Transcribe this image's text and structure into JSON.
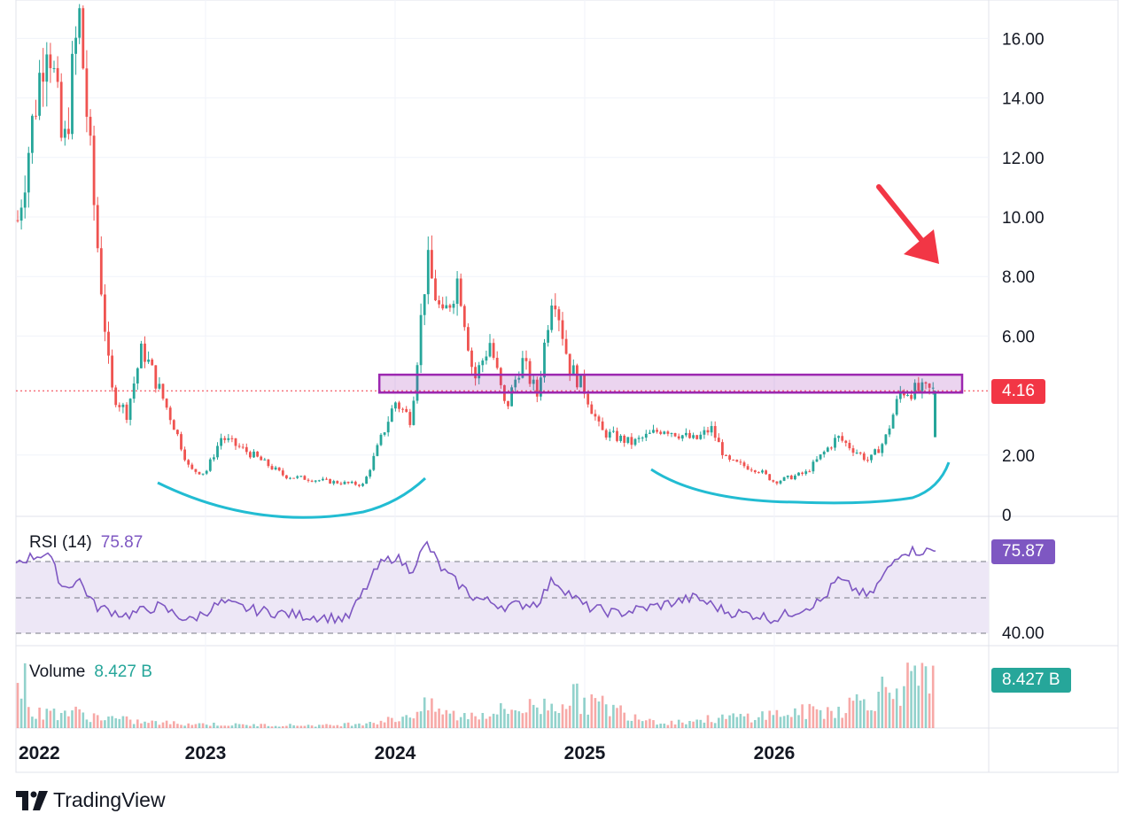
{
  "colors": {
    "up": "#26a69a",
    "down": "#ef5350",
    "rsi_line": "#7e57c2",
    "rsi_band": "#ede7f6",
    "grid": "#f0f3fa",
    "annotation_box": "#9c27b0",
    "curve": "#22bcd2",
    "arrow": "#f23645",
    "last_price_tag": "#f23645",
    "rsi_tag": "#7e57c2",
    "volume_tag": "#26a69a"
  },
  "price_axis": {
    "ticks": [
      "16.00",
      "14.00",
      "12.00",
      "10.00",
      "8.00",
      "6.00",
      "2.00",
      "0"
    ],
    "tick_values": [
      16,
      14,
      12,
      10,
      8,
      6,
      2,
      0
    ],
    "last_price_label": "4.16"
  },
  "rsi_axis": {
    "ticks": [
      "40.00"
    ],
    "tick_values": [
      40
    ]
  },
  "time_axis": {
    "labels": [
      "2022",
      "2023",
      "2024",
      "2025",
      "2026"
    ]
  },
  "rsi_pane": {
    "name": "RSI (14)",
    "value": "75.87"
  },
  "volume_pane": {
    "name": "Volume",
    "value": "8.427 B"
  },
  "branding": {
    "name": "TradingView",
    "logo_icon": "tradingview-logo-icon"
  },
  "chart_data": [
    {
      "type": "candlestick",
      "x_axis": "date",
      "y_range": [
        0,
        16.7
      ],
      "last_price": 4.16,
      "key_points": [
        {
          "date": "2022-01",
          "price": 9.5
        },
        {
          "date": "2022-03",
          "price": 16.5
        },
        {
          "date": "2022-04",
          "price": 12
        },
        {
          "date": "2022-05",
          "price": 16.8
        },
        {
          "date": "2022-06",
          "price": 10
        },
        {
          "date": "2022-07",
          "price": 4.2
        },
        {
          "date": "2022-08",
          "price": 3.4
        },
        {
          "date": "2022-09",
          "price": 5.6
        },
        {
          "date": "2022-10",
          "price": 4.3
        },
        {
          "date": "2022-11",
          "price": 3
        },
        {
          "date": "2022-12",
          "price": 1.5
        },
        {
          "date": "2023-01",
          "price": 1.4
        },
        {
          "date": "2023-02",
          "price": 2.6
        },
        {
          "date": "2023-04",
          "price": 2.0
        },
        {
          "date": "2023-06",
          "price": 1.3
        },
        {
          "date": "2023-09",
          "price": 1.1
        },
        {
          "date": "2023-11",
          "price": 1.0
        },
        {
          "date": "2023-12",
          "price": 2.4
        },
        {
          "date": "2024-01",
          "price": 3.8
        },
        {
          "date": "2024-02",
          "price": 3.2
        },
        {
          "date": "2024-03",
          "price": 8.5
        },
        {
          "date": "2024-04",
          "price": 6.5
        },
        {
          "date": "2024-05",
          "price": 8.0
        },
        {
          "date": "2024-06",
          "price": 4.5
        },
        {
          "date": "2024-07",
          "price": 5.8
        },
        {
          "date": "2024-08",
          "price": 3.5
        },
        {
          "date": "2024-09",
          "price": 5.2
        },
        {
          "date": "2024-10",
          "price": 4.0
        },
        {
          "date": "2024-11",
          "price": 7.8
        },
        {
          "date": "2024-12",
          "price": 5.0
        },
        {
          "date": "2025-01",
          "price": 4.2
        },
        {
          "date": "2025-02",
          "price": 2.8
        },
        {
          "date": "2025-04",
          "price": 2.4
        },
        {
          "date": "2025-06",
          "price": 2.9
        },
        {
          "date": "2025-08",
          "price": 2.5
        },
        {
          "date": "2025-09",
          "price": 2.9
        },
        {
          "date": "2025-10",
          "price": 1.8
        },
        {
          "date": "2025-12",
          "price": 1.5
        },
        {
          "date": "2026-01",
          "price": 1.1
        },
        {
          "date": "2026-03",
          "price": 1.4
        },
        {
          "date": "2026-05",
          "price": 2.6
        },
        {
          "date": "2026-07",
          "price": 1.8
        },
        {
          "date": "2026-08",
          "price": 2.5
        },
        {
          "date": "2026-09",
          "price": 4.16
        }
      ],
      "annotation_zone": {
        "price_from": 4.1,
        "price_to": 4.7,
        "date_from": "2023-12",
        "date_to": "2026-10"
      }
    },
    {
      "type": "line",
      "name": "RSI (14)",
      "x_axis": "date",
      "y_range": [
        30,
        80
      ],
      "band": [
        30,
        70
      ],
      "last_value": 75.87,
      "points": [
        {
          "date": "2022-01",
          "value": 70
        },
        {
          "date": "2022-03",
          "value": 75
        },
        {
          "date": "2022-04",
          "value": 55
        },
        {
          "date": "2022-05",
          "value": 60
        },
        {
          "date": "2022-06",
          "value": 45
        },
        {
          "date": "2022-08",
          "value": 40
        },
        {
          "date": "2022-10",
          "value": 45
        },
        {
          "date": "2022-12",
          "value": 37
        },
        {
          "date": "2023-02",
          "value": 47
        },
        {
          "date": "2023-04",
          "value": 43
        },
        {
          "date": "2023-07",
          "value": 40
        },
        {
          "date": "2023-10",
          "value": 38
        },
        {
          "date": "2023-12",
          "value": 68
        },
        {
          "date": "2024-01",
          "value": 73
        },
        {
          "date": "2024-02",
          "value": 65
        },
        {
          "date": "2024-03",
          "value": 80
        },
        {
          "date": "2024-04",
          "value": 65
        },
        {
          "date": "2024-06",
          "value": 50
        },
        {
          "date": "2024-08",
          "value": 45
        },
        {
          "date": "2024-10",
          "value": 47
        },
        {
          "date": "2024-11",
          "value": 60
        },
        {
          "date": "2025-01",
          "value": 45
        },
        {
          "date": "2025-03",
          "value": 41
        },
        {
          "date": "2025-06",
          "value": 46
        },
        {
          "date": "2025-08",
          "value": 50
        },
        {
          "date": "2025-10",
          "value": 42
        },
        {
          "date": "2025-12",
          "value": 40
        },
        {
          "date": "2026-01",
          "value": 38
        },
        {
          "date": "2026-04",
          "value": 48
        },
        {
          "date": "2026-05",
          "value": 60
        },
        {
          "date": "2026-07",
          "value": 50
        },
        {
          "date": "2026-09",
          "value": 75.87
        }
      ]
    },
    {
      "type": "bar",
      "name": "Volume",
      "x_axis": "date",
      "last_value": "8.427 B",
      "note_units": "billions",
      "points": [
        {
          "date": "2022-02",
          "value": 2.5
        },
        {
          "date": "2022-04",
          "value": 3.2
        },
        {
          "date": "2022-06",
          "value": 2.2
        },
        {
          "date": "2022-09",
          "value": 1.1
        },
        {
          "date": "2023-03",
          "value": 0.6
        },
        {
          "date": "2023-09",
          "value": 0.5
        },
        {
          "date": "2024-01",
          "value": 1.6
        },
        {
          "date": "2024-03",
          "value": 4.0
        },
        {
          "date": "2024-05",
          "value": 2.2
        },
        {
          "date": "2024-11",
          "value": 4.5
        },
        {
          "date": "2024-12",
          "value": 6.0
        },
        {
          "date": "2025-06",
          "value": 1.0
        },
        {
          "date": "2026-05",
          "value": 3.5
        },
        {
          "date": "2026-09",
          "value": 8.427
        }
      ]
    }
  ]
}
